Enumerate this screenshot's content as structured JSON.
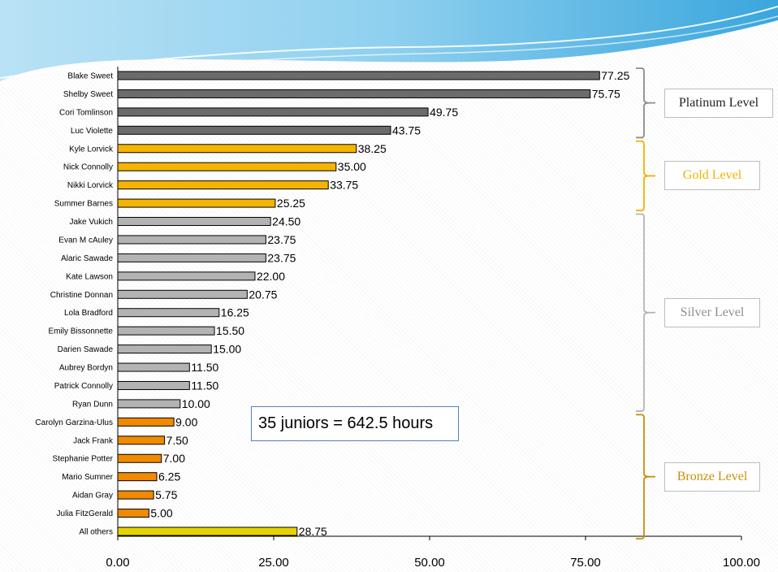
{
  "chart_data": {
    "type": "bar",
    "orientation": "horizontal",
    "categories": [
      "Blake Sweet",
      "Shelby Sweet",
      "Cori Tomlinson",
      "Luc Violette",
      "Kyle Lorvick",
      "Nick Connolly",
      "Nikki Lorvick",
      "Summer Barnes",
      "Jake Vukich",
      "Evan M cAuley",
      "Alaric Sawade",
      "Kate Lawson",
      "Christine Donnan",
      "Lola Bradford",
      "Emily Bissonnette",
      "Darien Sawade",
      "Aubrey Bordyn",
      "Patrick Connolly",
      "Ryan Dunn",
      "Carolyn Garzina-Ulus",
      "Jack Frank",
      "Stephanie Potter",
      "Mario Sumner",
      "Aidan Gray",
      "Julia FitzGerald",
      "All others"
    ],
    "values": [
      77.25,
      75.75,
      49.75,
      43.75,
      38.25,
      35.0,
      33.75,
      25.25,
      24.5,
      23.75,
      23.75,
      22.0,
      20.75,
      16.25,
      15.5,
      15.0,
      11.5,
      11.5,
      10.0,
      9.0,
      7.5,
      7.0,
      6.25,
      5.75,
      5.0,
      28.75
    ],
    "value_labels": [
      "77.25",
      "75.75",
      "49.75",
      "43.75",
      "38.25",
      "35.00",
      "33.75",
      "25.25",
      "24.50",
      "23.75",
      "23.75",
      "22.00",
      "20.75",
      "16.25",
      "15.50",
      "15.00",
      "11.50",
      "11.50",
      "10.00",
      "9.00",
      "7.50",
      "7.00",
      "6.25",
      "5.75",
      "5.00",
      "28.75"
    ],
    "bar_colors": [
      "#6b6b6b",
      "#6b6b6b",
      "#6b6b6b",
      "#6b6b6b",
      "#f5b400",
      "#f5b400",
      "#f5b400",
      "#f5b400",
      "#b3b3b3",
      "#b3b3b3",
      "#b3b3b3",
      "#b3b3b3",
      "#b3b3b3",
      "#b3b3b3",
      "#b3b3b3",
      "#b3b3b3",
      "#b3b3b3",
      "#b3b3b3",
      "#b3b3b3",
      "#f08a00",
      "#f08a00",
      "#f08a00",
      "#f08a00",
      "#f08a00",
      "#f08a00",
      "#e6d200"
    ],
    "xlim": [
      0,
      100
    ],
    "x_ticks": [
      0,
      25,
      50,
      75,
      100
    ],
    "x_tick_labels": [
      "0.00",
      "25.00",
      "50.00",
      "75.00",
      "100.00"
    ],
    "grid": false,
    "legend": "none"
  },
  "levels": [
    {
      "label": "Platinum Level",
      "color": "#222222",
      "bracket_color": "#8c8c8c",
      "rows": [
        0,
        3
      ]
    },
    {
      "label": "Gold Level",
      "color": "#f0b400",
      "bracket_color": "#f0b400",
      "rows": [
        4,
        7
      ]
    },
    {
      "label": "Silver Level",
      "color": "#8f8f8f",
      "bracket_color": "#b5b5b5",
      "rows": [
        8,
        18
      ]
    },
    {
      "label": "Bronze Level",
      "color": "#c8900a",
      "bracket_color": "#c8900a",
      "rows": [
        19,
        25
      ]
    }
  ],
  "annotation": "35 juniors = 642.5 hours"
}
